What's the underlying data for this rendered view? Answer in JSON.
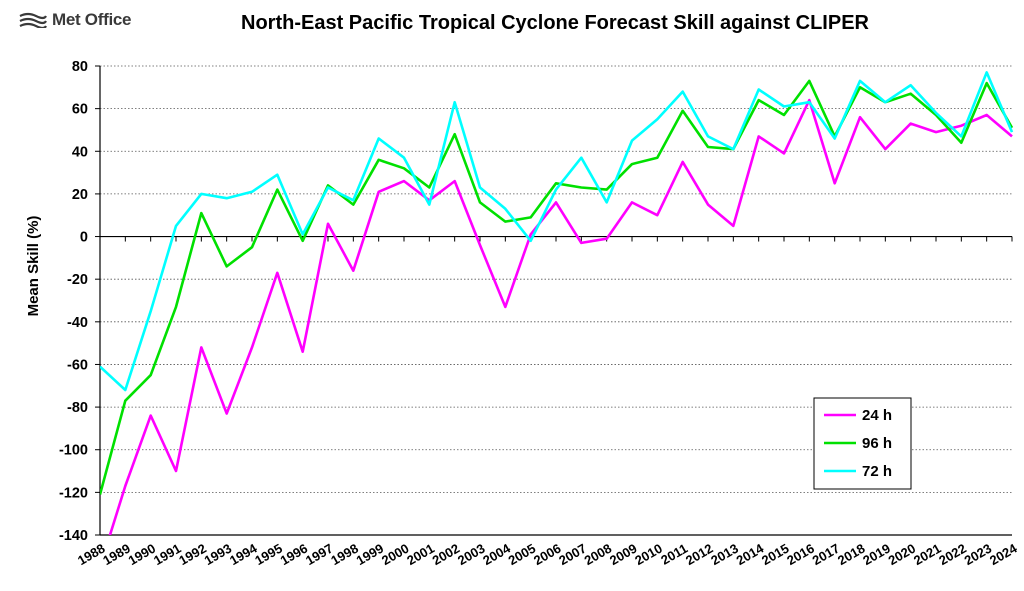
{
  "logo": {
    "text": "Met Office"
  },
  "chart_data": {
    "type": "line",
    "title": "North-East Pacific Tropical Cyclone Forecast Skill against CLIPER",
    "ylabel": "Mean Skill (%)",
    "xlabel": "",
    "ylim": [
      -140,
      80
    ],
    "yticks": [
      -140,
      -120,
      -100,
      -80,
      -60,
      -40,
      -20,
      0,
      20,
      40,
      60,
      80
    ],
    "grid": "horizontal dotted",
    "legend_position": "bottom-right",
    "x": [
      "1988",
      "1989",
      "1990",
      "1991",
      "1992",
      "1993",
      "1994",
      "1995",
      "1996",
      "1997",
      "1998",
      "1999",
      "2000",
      "2001",
      "2002",
      "2003",
      "2004",
      "2005",
      "2006",
      "2007",
      "2008",
      "2009",
      "2010",
      "2011",
      "2012",
      "2013",
      "2014",
      "2015",
      "2016",
      "2017",
      "2018",
      "2019",
      "2020",
      "2021",
      "2022",
      "2023",
      "2024"
    ],
    "series": [
      {
        "name": "24 h",
        "color": "#ff00ff",
        "values": [
          -155,
          -117,
          -84,
          -110,
          -52,
          -83,
          -52,
          -17,
          -54,
          6,
          -16,
          21,
          26,
          17,
          26,
          -4,
          -33,
          1,
          16,
          -3,
          -1,
          16,
          10,
          35,
          15,
          5,
          47,
          39,
          64,
          25,
          56,
          41,
          53,
          49,
          52,
          57,
          47
        ]
      },
      {
        "name": "96 h",
        "color": "#00e000",
        "values": [
          -121,
          -77,
          -65,
          -33,
          11,
          -14,
          -5,
          22,
          -2,
          24,
          15,
          36,
          32,
          23,
          48,
          16,
          7,
          9,
          25,
          23,
          22,
          34,
          37,
          59,
          42,
          41,
          64,
          57,
          73,
          47,
          70,
          63,
          67,
          57,
          44,
          72,
          51
        ]
      },
      {
        "name": "72 h",
        "color": "#00ffff",
        "values": [
          -61,
          -72,
          -35,
          5,
          20,
          18,
          21,
          29,
          1,
          23,
          17,
          46,
          37,
          15,
          63,
          23,
          13,
          -2,
          22,
          37,
          16,
          45,
          55,
          68,
          47,
          41,
          69,
          61,
          63,
          46,
          73,
          63,
          71,
          58,
          47,
          77,
          49
        ]
      }
    ]
  }
}
